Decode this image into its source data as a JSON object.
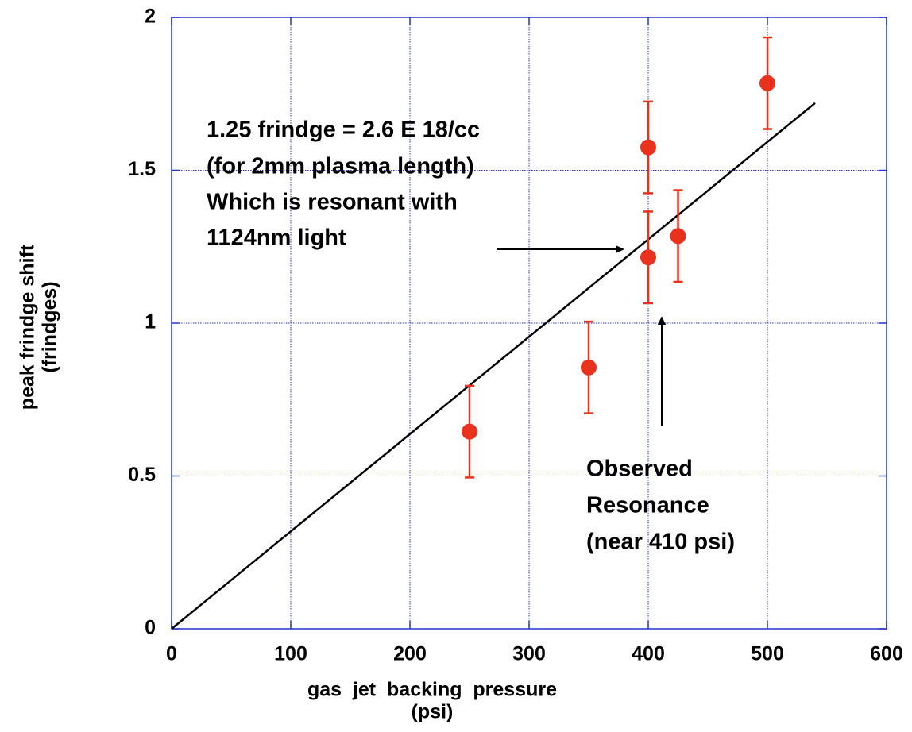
{
  "chart_data": {
    "type": "scatter",
    "x_label": [
      "gas  jet  backing  pressure",
      "(psi)"
    ],
    "y_label": [
      "peak frindge shift",
      "(frindges)"
    ],
    "x": [
      250,
      350,
      400,
      400,
      425,
      500
    ],
    "series": [
      {
        "color": "#e8321e",
        "values": [
          0.645,
          0.855,
          1.575,
          1.215,
          1.285,
          1.785
        ],
        "errors": [
          0.15,
          0.15,
          0.15,
          0.15,
          0.15,
          0.15
        ]
      }
    ],
    "fit_line": {
      "x": [
        0,
        540
      ],
      "values": [
        0,
        1.72
      ],
      "color": "#000000"
    },
    "xlim": [
      0,
      600
    ],
    "xticks": [
      0,
      100,
      200,
      300,
      400,
      500,
      600
    ],
    "ylim": [
      0,
      2
    ],
    "yticks": [
      0,
      0.5,
      1,
      1.5,
      2
    ],
    "grid": true,
    "grid_color": "#2233cc",
    "frame_color": "#2233cc",
    "annotations": [
      {
        "lines": [
          "1.25 frindge = 2.6 E 18/cc",
          "(for 2mm plasma length)",
          "Which is resonant with",
          "1124nm light"
        ]
      },
      {
        "lines": [
          "Observed",
          "Resonance",
          "(near 410 psi)"
        ]
      }
    ]
  }
}
